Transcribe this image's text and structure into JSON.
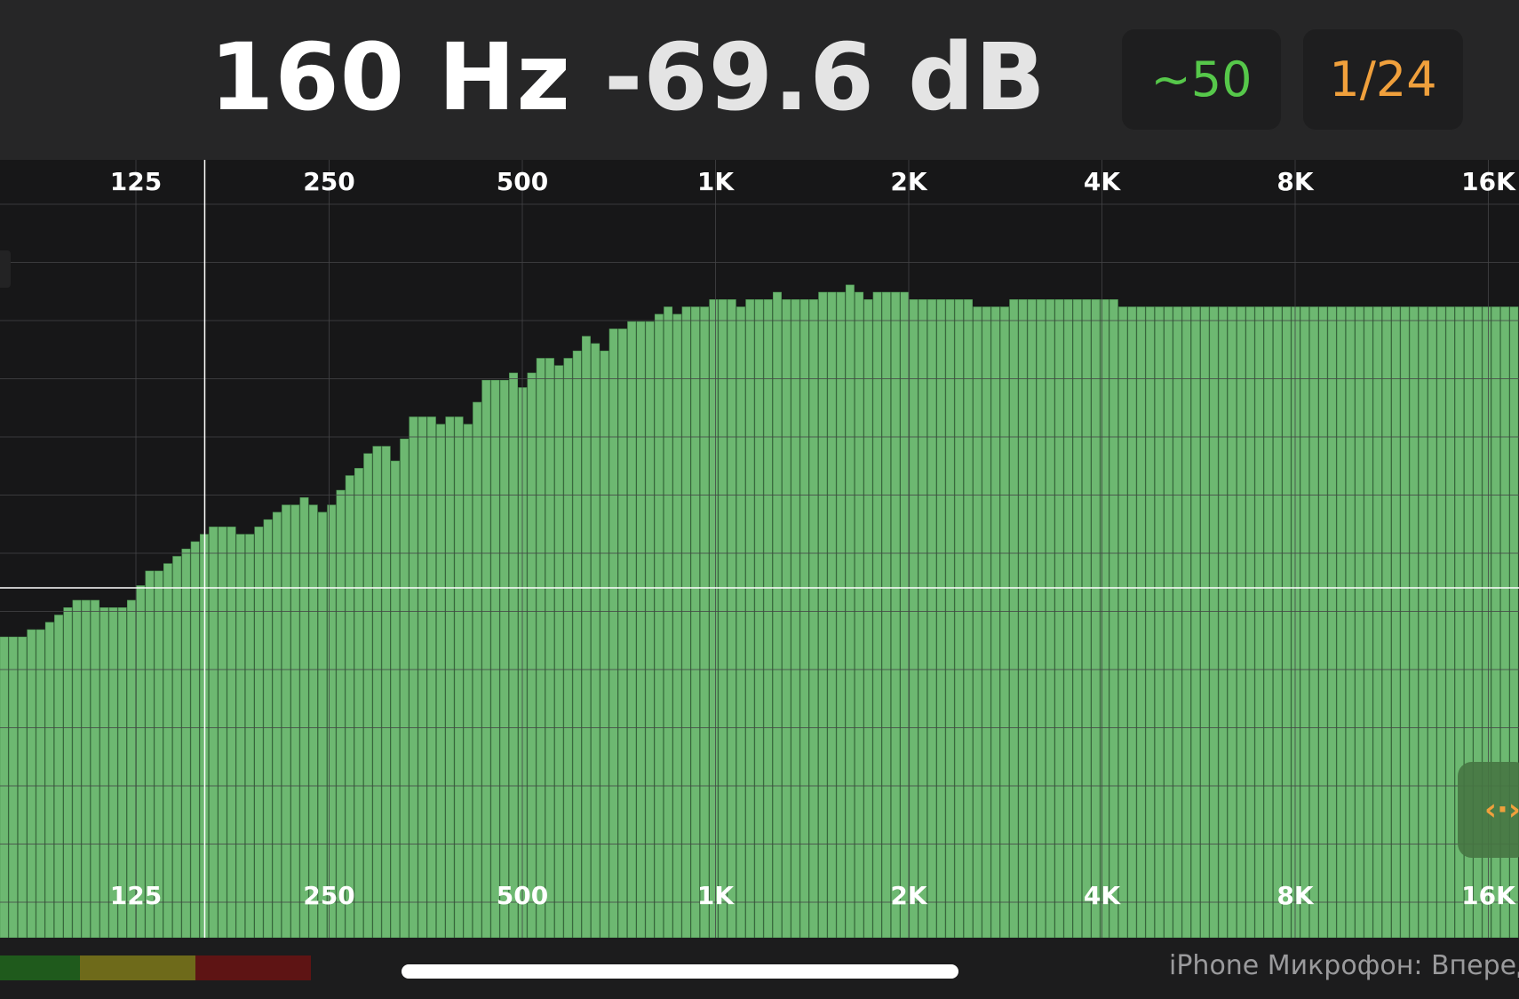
{
  "header": {
    "frequency_readout": "160 Hz",
    "level_readout": "-69.6 dB",
    "averaging_label": "~50",
    "resolution_label": "1/24"
  },
  "colors": {
    "background": "#1a1a1b",
    "header_background": "#262627",
    "bar_fill": "#6db871",
    "bar_edge": "#4f9a55",
    "grid": "#444446",
    "averaging_accent": "#56c84a",
    "resolution_accent": "#f0a03c"
  },
  "chart_data": {
    "type": "bar",
    "x_scale": "log",
    "x_unit": "Hz",
    "x_tick_values": [
      125,
      250,
      500,
      1000,
      2000,
      4000,
      8000,
      16000
    ],
    "x_tick_labels": [
      "125",
      "250",
      "500",
      "1K",
      "2K",
      "4K",
      "8K",
      "16K"
    ],
    "tick_labels_top": true,
    "tick_labels_bottom": true,
    "grid": true,
    "cursor": {
      "frequency_hz": 160,
      "level_db": -69.6
    },
    "band_resolution": "1/24 octave",
    "relative_bar_heights": [
      0.41,
      0.41,
      0.41,
      0.42,
      0.42,
      0.43,
      0.44,
      0.45,
      0.46,
      0.46,
      0.46,
      0.45,
      0.45,
      0.45,
      0.46,
      0.48,
      0.5,
      0.5,
      0.51,
      0.52,
      0.53,
      0.54,
      0.55,
      0.56,
      0.56,
      0.56,
      0.55,
      0.55,
      0.56,
      0.57,
      0.58,
      0.59,
      0.59,
      0.6,
      0.59,
      0.58,
      0.59,
      0.61,
      0.63,
      0.64,
      0.66,
      0.67,
      0.67,
      0.65,
      0.68,
      0.71,
      0.71,
      0.71,
      0.7,
      0.71,
      0.71,
      0.7,
      0.73,
      0.76,
      0.76,
      0.76,
      0.77,
      0.75,
      0.77,
      0.79,
      0.79,
      0.78,
      0.79,
      0.8,
      0.82,
      0.81,
      0.8,
      0.83,
      0.83,
      0.84,
      0.84,
      0.84,
      0.85,
      0.86,
      0.85,
      0.86,
      0.86,
      0.86,
      0.87,
      0.87,
      0.87,
      0.86,
      0.87,
      0.87,
      0.87,
      0.88,
      0.87,
      0.87,
      0.87,
      0.87,
      0.88,
      0.88,
      0.88,
      0.89,
      0.88,
      0.87,
      0.88,
      0.88,
      0.88,
      0.88,
      0.87,
      0.87,
      0.87,
      0.87,
      0.87,
      0.87,
      0.87,
      0.86,
      0.86,
      0.86,
      0.86,
      0.87,
      0.87,
      0.87,
      0.87,
      0.87,
      0.87,
      0.87,
      0.87,
      0.87,
      0.87,
      0.87,
      0.87,
      0.86,
      0.86,
      0.86,
      0.86,
      0.86,
      0.86,
      0.86,
      0.86,
      0.86,
      0.86,
      0.86,
      0.86,
      0.86,
      0.86,
      0.86,
      0.86,
      0.86,
      0.86,
      0.86,
      0.86,
      0.86,
      0.86,
      0.86,
      0.86,
      0.86,
      0.86,
      0.86,
      0.86,
      0.86,
      0.86,
      0.86,
      0.86,
      0.86,
      0.86,
      0.86,
      0.86,
      0.86,
      0.86,
      0.86,
      0.86,
      0.86,
      0.86,
      0.86,
      0.86
    ]
  },
  "footer": {
    "input_source": "iPhone Микрофон: Впереди"
  }
}
